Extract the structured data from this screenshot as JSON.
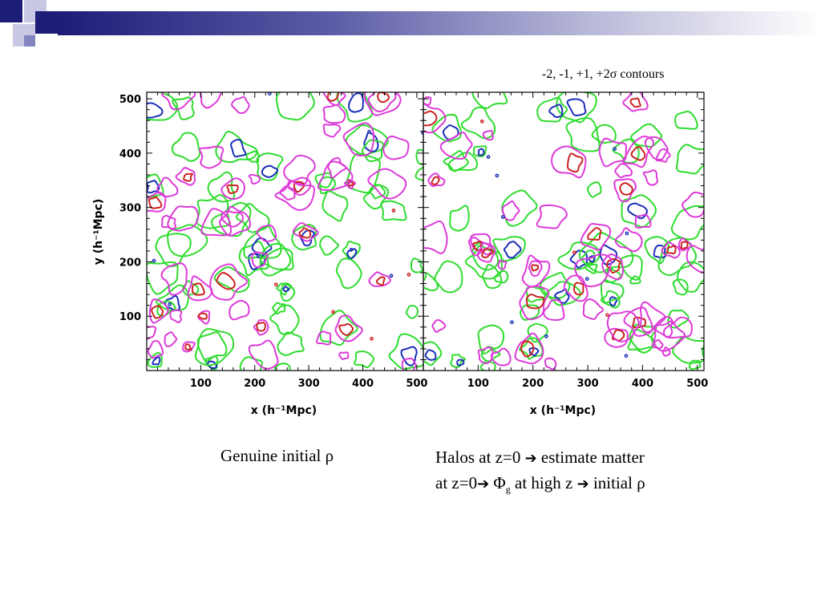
{
  "colors": {
    "minus2": "#cc2222",
    "minus1": "#1a2fb8",
    "plus1": "#2fdc2f",
    "plus2": "#dd3bd8",
    "header_dark": "#1d1d78"
  },
  "icons": {
    "arrow": "➔"
  },
  "caption_top": "-2, -1, +1, +2σ contours",
  "caption_left": {
    "text": "Genuine initial ",
    "rho": "ρ"
  },
  "caption_right": {
    "line1_a": "Halos at z=0 ",
    "line1_b": " estimate matter",
    "line2_a": "at z=0",
    "phi": "Φ",
    "sub_g": "g",
    "line2_b": " at high z ",
    "line2_c": " initial ",
    "rho": "ρ"
  },
  "chart_data": [
    {
      "type": "contour",
      "panel": "left",
      "title": "",
      "xlabel": "x (h⁻¹Mpc)",
      "ylabel": "y (h⁻¹Mpc)",
      "xlim": [
        0,
        512
      ],
      "ylim": [
        0,
        512
      ],
      "xticks": [
        "100",
        "200",
        "300",
        "400",
        "500"
      ],
      "yticks": [
        "100",
        "200",
        "300",
        "400",
        "500"
      ],
      "levels_sigma": [
        -2,
        -1,
        1,
        2
      ]
    },
    {
      "type": "contour",
      "panel": "right",
      "title": "",
      "xlabel": "x (h⁻¹Mpc)",
      "ylabel": "",
      "xlim": [
        0,
        512
      ],
      "ylim": [
        0,
        512
      ],
      "xticks": [
        "100",
        "200",
        "300",
        "400",
        "500"
      ],
      "yticks": [],
      "levels_sigma": [
        -2,
        -1,
        1,
        2
      ]
    }
  ]
}
